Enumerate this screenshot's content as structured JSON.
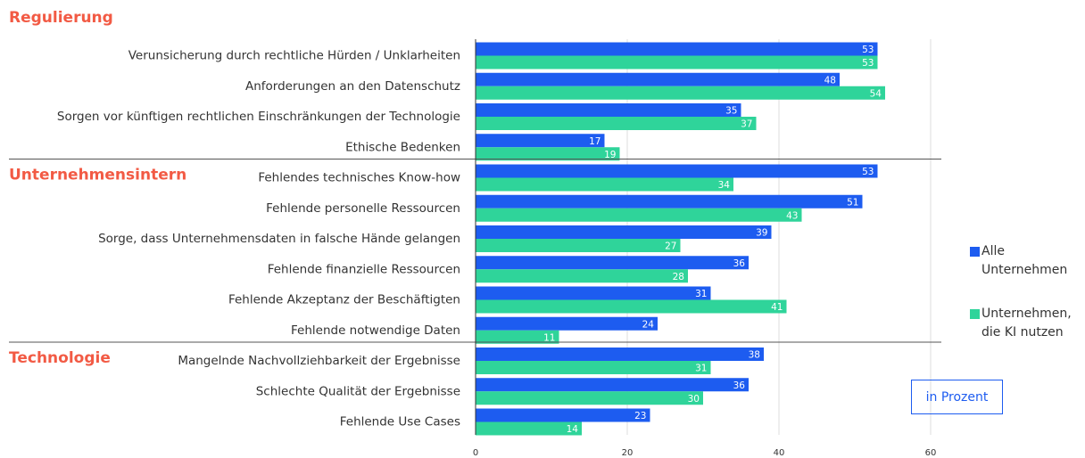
{
  "chart_data": {
    "type": "hbar_grouped",
    "sections": [
      {
        "name": "Regulierung",
        "categories": [
          "Verunsicherung durch rechtliche Hürden / Unklarheiten",
          "Anforderungen an den Datenschutz",
          "Sorgen vor künftigen rechtlichen Einschränkungen der Technologie",
          "Ethische Bedenken"
        ]
      },
      {
        "name": "Unternehmensintern",
        "categories": [
          "Fehlendes technisches Know-how",
          "Fehlende personelle Ressourcen",
          "Sorge, dass Unternehmensdaten in falsche Hände gelangen",
          "Fehlende finanzielle Ressourcen",
          "Fehlende Akzeptanz der Beschäftigten",
          "Fehlende notwendige Daten"
        ]
      },
      {
        "name": "Technologie",
        "categories": [
          "Mangelnde Nachvollziehbarkeit der Ergebnisse",
          "Schlechte Qualität der Ergebnisse",
          "Fehlende Use Cases"
        ]
      }
    ],
    "series": [
      {
        "name": "Alle Unternehmen",
        "color": "#1d5cf0",
        "values": [
          53,
          48,
          35,
          17,
          53,
          51,
          39,
          36,
          31,
          24,
          38,
          36,
          23
        ]
      },
      {
        "name": "Unternehmen, die KI nutzen",
        "color": "#2fd49a",
        "values": [
          53,
          54,
          37,
          19,
          34,
          43,
          27,
          28,
          41,
          11,
          31,
          30,
          14
        ]
      }
    ],
    "xlim": [
      0,
      60
    ],
    "xticks": [
      0,
      20,
      40,
      60
    ],
    "grid": true,
    "annotation": "in Prozent",
    "legend": "right"
  }
}
